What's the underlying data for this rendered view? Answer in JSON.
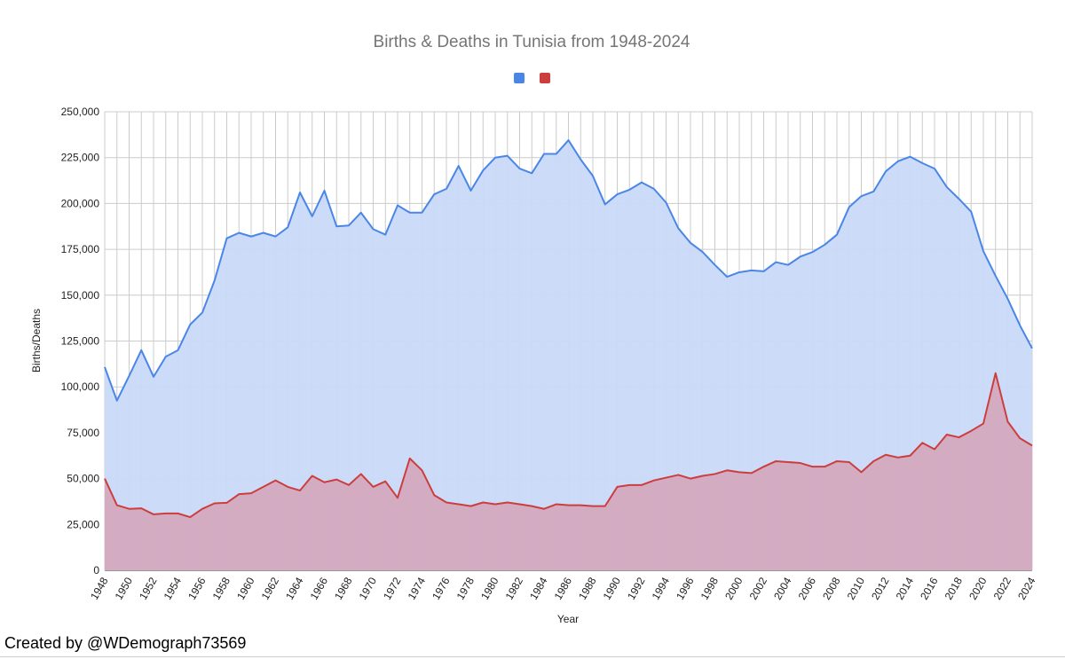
{
  "chart_data": {
    "type": "area",
    "title": "Births & Deaths in Tunisia from 1948-2024",
    "xlabel": "Year",
    "ylabel": "Births/Deaths",
    "ylim": [
      0,
      250000
    ],
    "y_ticks": [
      0,
      25000,
      50000,
      75000,
      100000,
      125000,
      150000,
      175000,
      200000,
      225000,
      250000
    ],
    "y_tick_labels": [
      "0",
      "25,000",
      "50,000",
      "75,000",
      "100,000",
      "125,000",
      "150,000",
      "175,000",
      "200,000",
      "225,000",
      "250,000"
    ],
    "x_tick_labels": [
      "1948",
      "1950",
      "1952",
      "1954",
      "1956",
      "1958",
      "1960",
      "1962",
      "1964",
      "1966",
      "1968",
      "1970",
      "1972",
      "1974",
      "1976",
      "1978",
      "1980",
      "1982",
      "1984",
      "1986",
      "1988",
      "1990",
      "1992",
      "1994",
      "1996",
      "1998",
      "2000",
      "2002",
      "2004",
      "2006",
      "2008",
      "2010",
      "2012",
      "2014",
      "2016",
      "2018",
      "2020",
      "2022",
      "2024"
    ],
    "grid": true,
    "legend_position": "top",
    "x": [
      1948,
      1949,
      1950,
      1951,
      1952,
      1953,
      1954,
      1955,
      1956,
      1957,
      1958,
      1959,
      1960,
      1961,
      1962,
      1963,
      1964,
      1965,
      1966,
      1967,
      1968,
      1969,
      1970,
      1971,
      1972,
      1973,
      1974,
      1975,
      1976,
      1977,
      1978,
      1979,
      1980,
      1981,
      1982,
      1983,
      1984,
      1985,
      1986,
      1987,
      1988,
      1989,
      1990,
      1991,
      1992,
      1993,
      1994,
      1995,
      1996,
      1997,
      1998,
      1999,
      2000,
      2001,
      2002,
      2003,
      2004,
      2005,
      2006,
      2007,
      2008,
      2009,
      2010,
      2011,
      2012,
      2013,
      2014,
      2015,
      2016,
      2017,
      2018,
      2019,
      2020,
      2021,
      2022,
      2023,
      2024
    ],
    "series": [
      {
        "color": "#4a86e8",
        "fill": "#c9daf8",
        "values": [
          110800,
          92500,
          106000,
          120000,
          105500,
          116500,
          120000,
          134000,
          140500,
          158000,
          181000,
          184000,
          182000,
          184000,
          182000,
          187000,
          206000,
          193000,
          207000,
          187500,
          188000,
          195000,
          186000,
          183000,
          199000,
          195000,
          195000,
          205000,
          208000,
          220500,
          207000,
          218000,
          225000,
          226000,
          219000,
          216500,
          227000,
          227000,
          234500,
          224000,
          215000,
          199500,
          205000,
          207500,
          211500,
          208000,
          200500,
          186500,
          178500,
          173500,
          166500,
          160000,
          162500,
          163500,
          163000,
          168000,
          166500,
          171000,
          173500,
          177500,
          183000,
          198000,
          204000,
          206500,
          217500,
          223000,
          225500,
          222000,
          219000,
          209000,
          202500,
          195500,
          174000,
          160500,
          148000,
          133500,
          121000
        ]
      },
      {
        "color": "#cc3e3e",
        "fill": "#d4a9bf",
        "values": [
          50000,
          35500,
          33500,
          33800,
          30500,
          31000,
          31000,
          29000,
          33500,
          36500,
          36800,
          41500,
          42000,
          45500,
          49000,
          45500,
          43500,
          51500,
          48000,
          49500,
          46500,
          52500,
          45500,
          48500,
          39500,
          61000,
          54500,
          41000,
          37000,
          36000,
          35000,
          37000,
          36000,
          37000,
          36000,
          35000,
          33500,
          36000,
          35500,
          35500,
          35000,
          35000,
          45500,
          46500,
          46500,
          49000,
          50500,
          52000,
          50000,
          51500,
          52500,
          54500,
          53500,
          53000,
          56500,
          59500,
          59000,
          58500,
          56500,
          56500,
          59500,
          59000,
          53500,
          59500,
          63000,
          61500,
          62500,
          69500,
          66000,
          74000,
          72500,
          76000,
          80000,
          107500,
          81000,
          72000,
          68000
        ]
      }
    ]
  },
  "footer": {
    "credit": "Created by @WDemograph73569"
  }
}
